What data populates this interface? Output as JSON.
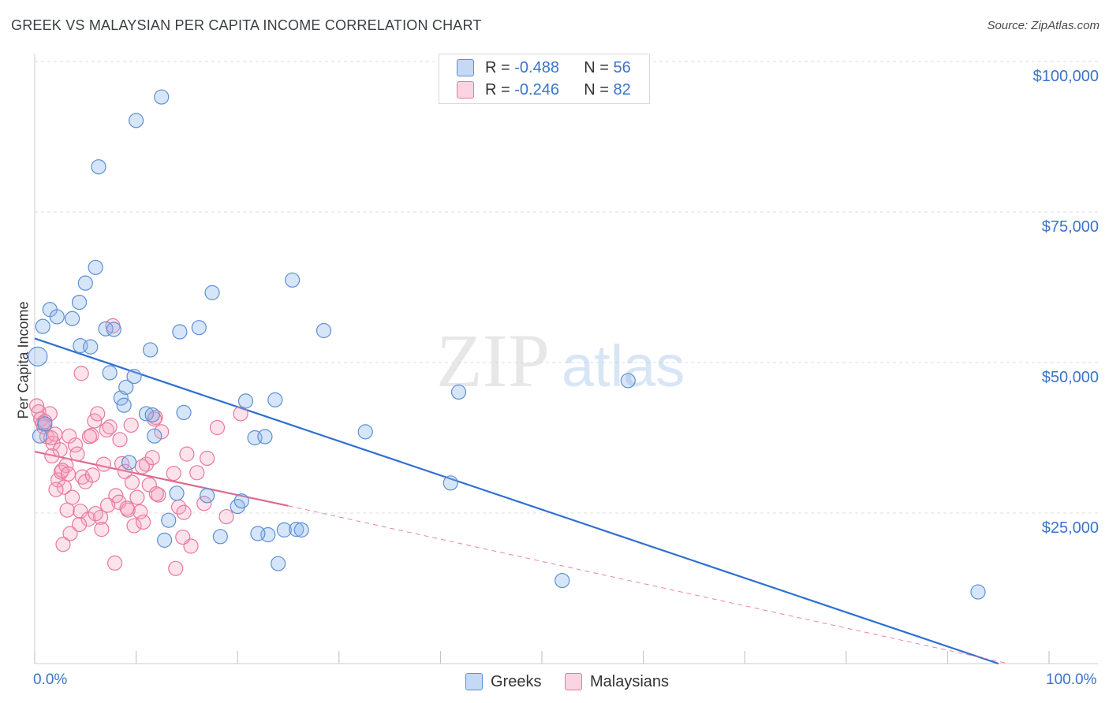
{
  "title": "GREEK VS MALAYSIAN PER CAPITA INCOME CORRELATION CHART",
  "source": "Source: ZipAtlas.com",
  "watermark": {
    "zip": "ZIP",
    "atlas": "atlas"
  },
  "colors": {
    "greeks": "#5b8fd6",
    "greeks_fill": "rgba(140,180,235,0.35)",
    "greeks_line": "#2f6fd0",
    "malaysians": "#e8799c",
    "malaysians_fill": "rgba(245,160,190,0.30)",
    "malaysians_line": "#e06890",
    "axis_text": "#3a74c9"
  },
  "legend": {
    "greeks": {
      "r_label": "R = ",
      "r_value": "-0.488",
      "n_label": "N = ",
      "n_value": "56"
    },
    "malaysians": {
      "r_label": "R = ",
      "r_value": "-0.246",
      "n_label": "N = ",
      "n_value": "82"
    }
  },
  "bottom_legend": {
    "greeks": "Greeks",
    "malaysians": "Malaysians"
  },
  "chart_data": {
    "type": "scatter",
    "title": "GREEK VS MALAYSIAN PER CAPITA INCOME CORRELATION CHART",
    "xlabel": "",
    "ylabel": "Per Capita Income",
    "xlim": [
      0,
      100
    ],
    "ylim": [
      0,
      105000
    ],
    "x_tick_labels": {
      "min": "0.0%",
      "max": "100.0%"
    },
    "y_ticks": [
      {
        "value": 25000,
        "label": "$25,000"
      },
      {
        "value": 50000,
        "label": "$50,000"
      },
      {
        "value": 75000,
        "label": "$75,000"
      },
      {
        "value": 100000,
        "label": "$100,000"
      }
    ],
    "series": [
      {
        "name": "Greeks",
        "points": [
          [
            0.3,
            51000
          ],
          [
            0.8,
            56000
          ],
          [
            1.5,
            58800
          ],
          [
            2.2,
            57600
          ],
          [
            3.7,
            57300
          ],
          [
            4.4,
            60000
          ],
          [
            5.0,
            63200
          ],
          [
            6.0,
            65800
          ],
          [
            6.3,
            82500
          ],
          [
            10.0,
            90200
          ],
          [
            12.5,
            94100
          ],
          [
            4.5,
            52800
          ],
          [
            5.5,
            52600
          ],
          [
            7.0,
            55600
          ],
          [
            7.8,
            55500
          ],
          [
            7.4,
            48300
          ],
          [
            8.5,
            44100
          ],
          [
            8.8,
            42900
          ],
          [
            9.0,
            45900
          ],
          [
            9.8,
            47700
          ],
          [
            11.0,
            41500
          ],
          [
            11.4,
            52100
          ],
          [
            11.8,
            37800
          ],
          [
            14.7,
            41700
          ],
          [
            14.3,
            55100
          ],
          [
            16.2,
            55800
          ],
          [
            17.5,
            61600
          ],
          [
            20.0,
            26100
          ],
          [
            20.4,
            27000
          ],
          [
            21.7,
            37500
          ],
          [
            22.7,
            37700
          ],
          [
            23.0,
            21400
          ],
          [
            23.7,
            43800
          ],
          [
            24.0,
            16600
          ],
          [
            24.6,
            22200
          ],
          [
            25.4,
            63700
          ],
          [
            25.8,
            22300
          ],
          [
            26.3,
            22200
          ],
          [
            28.5,
            55300
          ],
          [
            32.6,
            38500
          ],
          [
            41.0,
            30000
          ],
          [
            41.8,
            45100
          ],
          [
            52.0,
            13800
          ],
          [
            58.5,
            47000
          ],
          [
            93.0,
            11900
          ],
          [
            12.8,
            20500
          ],
          [
            13.2,
            23800
          ],
          [
            14.0,
            28300
          ],
          [
            17.0,
            27900
          ],
          [
            18.3,
            21100
          ],
          [
            20.8,
            43600
          ],
          [
            22.0,
            21600
          ],
          [
            9.3,
            33400
          ],
          [
            11.6,
            41300
          ],
          [
            1.0,
            39800
          ],
          [
            0.5,
            37800
          ]
        ]
      },
      {
        "name": "Malaysians",
        "points": [
          [
            0.2,
            42800
          ],
          [
            0.4,
            41800
          ],
          [
            0.6,
            40600
          ],
          [
            0.9,
            39300
          ],
          [
            1.2,
            37700
          ],
          [
            1.5,
            41500
          ],
          [
            1.8,
            36600
          ],
          [
            2.0,
            38100
          ],
          [
            2.3,
            30500
          ],
          [
            2.6,
            31800
          ],
          [
            2.9,
            29300
          ],
          [
            3.1,
            32900
          ],
          [
            3.4,
            37800
          ],
          [
            3.7,
            27600
          ],
          [
            4.0,
            36300
          ],
          [
            4.2,
            34800
          ],
          [
            4.5,
            25300
          ],
          [
            4.7,
            31000
          ],
          [
            5.0,
            30200
          ],
          [
            5.3,
            24000
          ],
          [
            5.6,
            37900
          ],
          [
            5.9,
            40300
          ],
          [
            6.2,
            41500
          ],
          [
            6.5,
            24300
          ],
          [
            6.8,
            33100
          ],
          [
            7.1,
            38800
          ],
          [
            7.4,
            39300
          ],
          [
            7.7,
            56100
          ],
          [
            8.0,
            27900
          ],
          [
            8.3,
            26800
          ],
          [
            8.6,
            33200
          ],
          [
            8.9,
            31900
          ],
          [
            9.2,
            25500
          ],
          [
            9.5,
            39600
          ],
          [
            9.8,
            22900
          ],
          [
            10.1,
            27600
          ],
          [
            10.4,
            25200
          ],
          [
            10.7,
            23500
          ],
          [
            11.0,
            33100
          ],
          [
            11.3,
            29700
          ],
          [
            11.6,
            34200
          ],
          [
            11.9,
            40900
          ],
          [
            12.2,
            28000
          ],
          [
            12.5,
            38500
          ],
          [
            13.7,
            31600
          ],
          [
            14.2,
            26000
          ],
          [
            14.7,
            25100
          ],
          [
            15.0,
            34800
          ],
          [
            15.4,
            19500
          ],
          [
            16.0,
            31700
          ],
          [
            17.0,
            34100
          ],
          [
            18.0,
            39200
          ],
          [
            18.9,
            24400
          ],
          [
            20.3,
            41500
          ],
          [
            3.5,
            21600
          ],
          [
            3.2,
            25500
          ],
          [
            2.5,
            35500
          ],
          [
            2.7,
            32100
          ],
          [
            1.6,
            37500
          ],
          [
            0.8,
            39900
          ],
          [
            1.0,
            40200
          ],
          [
            4.6,
            48200
          ],
          [
            5.4,
            37700
          ],
          [
            7.9,
            16700
          ],
          [
            8.4,
            37200
          ],
          [
            9.1,
            25800
          ],
          [
            10.6,
            32700
          ],
          [
            11.8,
            40600
          ],
          [
            13.9,
            15800
          ],
          [
            6.0,
            24900
          ],
          [
            4.4,
            23100
          ],
          [
            5.7,
            31300
          ],
          [
            6.6,
            22300
          ],
          [
            3.3,
            31500
          ],
          [
            2.1,
            28900
          ],
          [
            1.7,
            34500
          ],
          [
            2.8,
            19800
          ],
          [
            12.0,
            28200
          ],
          [
            14.6,
            21000
          ],
          [
            16.7,
            26600
          ],
          [
            7.2,
            26300
          ],
          [
            9.6,
            30100
          ]
        ]
      }
    ],
    "trendlines": [
      {
        "series": "Greeks",
        "x": [
          0,
          95
        ],
        "y": [
          54000,
          0
        ],
        "style": "solid"
      },
      {
        "series": "Malaysians",
        "x": [
          0,
          25
        ],
        "y": [
          35200,
          26200
        ],
        "style": "solid"
      },
      {
        "series": "Malaysians",
        "x": [
          25,
          96
        ],
        "y": [
          26200,
          0
        ],
        "style": "dashed"
      }
    ],
    "grid": true
  }
}
